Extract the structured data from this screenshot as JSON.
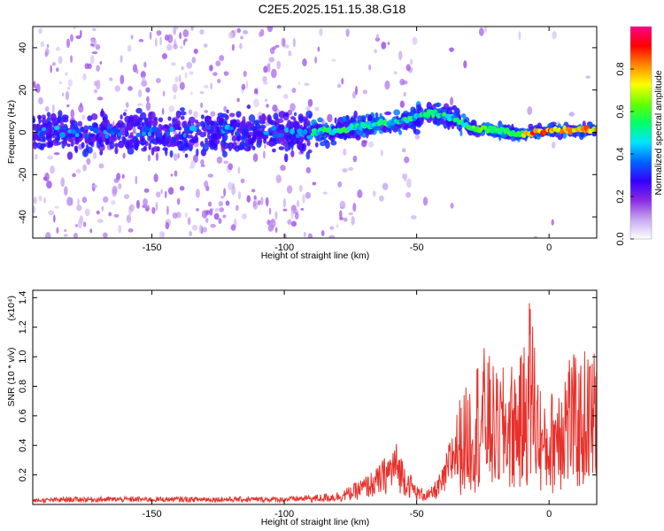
{
  "title": "C2E5.2025.151.15.38.G18",
  "chart_data": [
    {
      "type": "heatmap",
      "xlabel": "Height of straight line (km)",
      "ylabel": "Frequency (Hz)",
      "xlim": [
        -195,
        18
      ],
      "ylim": [
        -50,
        50
      ],
      "xticks": [
        -150,
        -100,
        -50,
        0
      ],
      "yticks": [
        -40,
        -20,
        0,
        20,
        40
      ],
      "xtick_labels": [
        "-150",
        "-100",
        "-50",
        "0"
      ],
      "ytick_labels": [
        "-40",
        "-20",
        "0",
        "20",
        "40"
      ],
      "colorbar": {
        "label": "Normalized spectral amplitude",
        "range": [
          0,
          1
        ],
        "ticks": [
          0.0,
          0.2,
          0.4,
          0.6,
          0.8
        ],
        "tick_labels": [
          "0.0",
          "0.2",
          "0.4",
          "0.6",
          "0.8"
        ],
        "colormap": [
          "#ffffff",
          "#c8a8f0",
          "#8a2be2",
          "#3300ff",
          "#0066ff",
          "#00e5ff",
          "#00ff66",
          "#66ff00",
          "#ffff00",
          "#ff8800",
          "#ff0000",
          "#ff0088"
        ]
      },
      "ridge": {
        "x": [
          -195,
          -150,
          -100,
          -90,
          -80,
          -70,
          -60,
          -50,
          -45,
          -40,
          -35,
          -30,
          -20,
          -10,
          0,
          10,
          18
        ],
        "y": [
          0,
          0,
          0,
          0,
          1,
          3,
          5,
          7,
          9,
          8,
          6,
          2,
          1,
          -1,
          1,
          1,
          1
        ]
      }
    },
    {
      "type": "line",
      "xlabel": "Height of straight line (km)",
      "ylabel": "SNR (10 * v/v)",
      "scale_label": "(x10⁴)",
      "xlim": [
        -195,
        18
      ],
      "ylim": [
        0,
        1.45
      ],
      "xticks": [
        -150,
        -100,
        -50,
        0
      ],
      "yticks": [
        0.2,
        0.4,
        0.6,
        0.8,
        1.0,
        1.2,
        1.4
      ],
      "xtick_labels": [
        "-150",
        "-100",
        "-50",
        "0"
      ],
      "ytick_labels": [
        "0.2",
        "0.4",
        "0.6",
        "0.8",
        "1.0",
        "1.2",
        "1.4"
      ],
      "color": "#e8302a",
      "series": [
        {
          "x": [
            -195,
            -180,
            -160,
            -140,
            -120,
            -100,
            -90,
            -80,
            -75,
            -70,
            -65,
            -60,
            -58,
            -55,
            -50,
            -45,
            -40,
            -37,
            -34,
            -30,
            -27,
            -24,
            -20,
            -15,
            -10,
            -7,
            -5,
            -2,
            0,
            2,
            5,
            8,
            11,
            14,
            16,
            18
          ],
          "values": [
            0.03,
            0.04,
            0.04,
            0.04,
            0.04,
            0.04,
            0.05,
            0.07,
            0.1,
            0.15,
            0.2,
            0.3,
            0.35,
            0.25,
            0.1,
            0.08,
            0.2,
            0.4,
            0.6,
            0.7,
            0.85,
            0.9,
            0.75,
            0.8,
            0.85,
            1.25,
            0.9,
            0.55,
            0.6,
            0.7,
            0.85,
            0.9,
            0.8,
            0.9,
            0.85,
            0.95
          ]
        }
      ]
    }
  ]
}
